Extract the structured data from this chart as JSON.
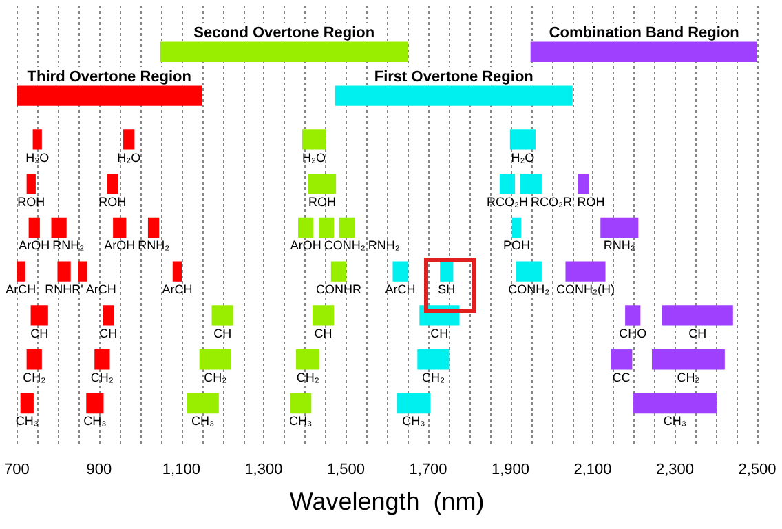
{
  "chart_data": {
    "type": "bar",
    "orientation": "horizontal",
    "xlabel": "Wavelength  (nm)",
    "categories": [
      null,
      null,
      null,
      null,
      null,
      null,
      null,
      null,
      null
    ],
    "xlim": [
      700,
      2500
    ],
    "xticks": [
      {
        "value": 700,
        "label": "700"
      },
      {
        "value": 750,
        "label": null
      },
      {
        "value": 800,
        "label": null
      },
      {
        "value": 850,
        "label": null
      },
      {
        "value": 900,
        "label": "900"
      },
      {
        "value": 950,
        "label": null
      },
      {
        "value": 1000,
        "label": null
      },
      {
        "value": 1050,
        "label": null
      },
      {
        "value": 1100,
        "label": "1,100"
      },
      {
        "value": 1150,
        "label": null
      },
      {
        "value": 1200,
        "label": null
      },
      {
        "value": 1250,
        "label": null
      },
      {
        "value": 1300,
        "label": "1,300"
      },
      {
        "value": 1350,
        "label": null
      },
      {
        "value": 1400,
        "label": null
      },
      {
        "value": 1450,
        "label": null
      },
      {
        "value": 1500,
        "label": "1,500"
      },
      {
        "value": 1550,
        "label": null
      },
      {
        "value": 1600,
        "label": null
      },
      {
        "value": 1650,
        "label": null
      },
      {
        "value": 1700,
        "label": "1,700"
      },
      {
        "value": 1750,
        "label": null
      },
      {
        "value": 1800,
        "label": null
      },
      {
        "value": 1850,
        "label": null
      },
      {
        "value": 1900,
        "label": "1,900"
      },
      {
        "value": 1950,
        "label": null
      },
      {
        "value": 2000,
        "label": null
      },
      {
        "value": 2050,
        "label": null
      },
      {
        "value": 2100,
        "label": "2,100"
      },
      {
        "value": 2150,
        "label": null
      },
      {
        "value": 2200,
        "label": null
      },
      {
        "value": 2250,
        "label": null
      },
      {
        "value": 2300,
        "label": "2,300"
      },
      {
        "value": 2350,
        "label": null
      },
      {
        "value": 2400,
        "label": null
      },
      {
        "value": 2450,
        "label": null
      },
      {
        "value": 2500,
        "label": "2,500"
      }
    ],
    "grid": "x",
    "series": [
      {
        "color": "#ff0000",
        "base": [
          null,
          700,
          740,
          725,
          730,
          700,
          735,
          725,
          710
        ],
        "values": [
          null,
          450,
          20,
          20,
          25,
          20,
          40,
          35,
          30
        ],
        "value_labels": [
          null,
          "Third Overtone Region",
          "H₂O",
          "ROH",
          "ArOH",
          "ArCH",
          "CH",
          "CH₂",
          "CH₃"
        ]
      },
      {
        "color": "#ff0000",
        "base": [
          null,
          null,
          960,
          920,
          785,
          800,
          910,
          890,
          870
        ],
        "values": [
          null,
          null,
          25,
          25,
          35,
          30,
          25,
          35,
          40
        ],
        "value_labels": [
          null,
          null,
          "H₂O",
          "ROH",
          "RNH₂",
          "RNHR'",
          "CH",
          "CH₂",
          "CH₃"
        ]
      },
      {
        "color": "#ff0000",
        "base": [
          null,
          null,
          null,
          null,
          935,
          850,
          null,
          null,
          null
        ],
        "values": [
          null,
          null,
          null,
          null,
          30,
          20,
          null,
          null,
          null
        ],
        "value_labels": [
          null,
          null,
          null,
          null,
          "ArOH",
          "ArCH",
          null,
          null,
          null
        ]
      },
      {
        "color": "#ff0000",
        "base": [
          null,
          null,
          null,
          null,
          1020,
          1080,
          null,
          null,
          null
        ],
        "values": [
          null,
          null,
          null,
          null,
          25,
          20,
          null,
          null,
          null
        ],
        "value_labels": [
          null,
          null,
          null,
          null,
          "RNH₂",
          "ArCH",
          null,
          null,
          null
        ]
      },
      {
        "color": "#99ee00",
        "base": [
          1050,
          null,
          1395,
          1410,
          1385,
          1465,
          1175,
          1145,
          1115
        ],
        "values": [
          600,
          null,
          55,
          65,
          35,
          35,
          50,
          75,
          75
        ],
        "value_labels": [
          "Second Overtone Region",
          null,
          "H₂O",
          "ROH",
          "ArOH",
          "CONHR",
          "CH",
          "CH₂",
          "CH₃"
        ]
      },
      {
        "color": "#99ee00",
        "base": [
          null,
          null,
          null,
          null,
          1435,
          null,
          1420,
          1380,
          1365
        ],
        "values": [
          null,
          null,
          null,
          null,
          35,
          null,
          50,
          55,
          50
        ],
        "value_labels": [
          null,
          null,
          null,
          null,
          "CONH₂",
          null,
          "CH",
          "CH₂",
          "CH₃"
        ]
      },
      {
        "color": "#99ee00",
        "base": [
          null,
          null,
          null,
          null,
          1485,
          null,
          null,
          null,
          null
        ],
        "values": [
          null,
          null,
          null,
          null,
          35,
          null,
          null,
          null,
          null
        ],
        "value_labels": [
          null,
          null,
          null,
          null,
          "RNH₂",
          null,
          null,
          null,
          null
        ]
      },
      {
        "color": "#00f0f0",
        "base": [
          null,
          1475,
          1900,
          1875,
          1905,
          1615,
          1680,
          1675,
          1625
        ],
        "values": [
          null,
          575,
          60,
          35,
          20,
          35,
          95,
          75,
          80
        ],
        "value_labels": [
          null,
          "First Overtone Region",
          "H₂O",
          "RCO₂H",
          "POH",
          "ArCH",
          "CH",
          "CH₂",
          "CH₃"
        ]
      },
      {
        "color": "#00f0f0",
        "base": [
          null,
          null,
          null,
          1925,
          null,
          1730,
          null,
          null,
          null
        ],
        "values": [
          null,
          null,
          null,
          50,
          null,
          30,
          null,
          null,
          null
        ],
        "value_labels": [
          null,
          null,
          null,
          "RCO₂R'",
          null,
          "SH",
          null,
          null,
          null
        ]
      },
      {
        "color": "#00f0f0",
        "base": [
          null,
          null,
          null,
          null,
          null,
          1915,
          null,
          null,
          null
        ],
        "values": [
          null,
          null,
          null,
          null,
          null,
          60,
          null,
          null,
          null
        ],
        "value_labels": [
          null,
          null,
          null,
          null,
          null,
          "CONH₂",
          null,
          null,
          null
        ]
      },
      {
        "color": "#a040ff",
        "base": [
          1950,
          null,
          null,
          2065,
          2120,
          2035,
          2180,
          2145,
          2200
        ],
        "values": [
          550,
          null,
          null,
          25,
          90,
          95,
          35,
          50,
          200
        ],
        "value_labels": [
          "Combination Band Region",
          null,
          null,
          "ROH",
          "RNH₂",
          "CONH₂(H)",
          "CHO",
          "CC",
          "CH₃"
        ]
      },
      {
        "color": "#a040ff",
        "base": [
          null,
          null,
          null,
          null,
          null,
          null,
          2270,
          2245,
          null
        ],
        "values": [
          null,
          null,
          null,
          null,
          null,
          null,
          170,
          175,
          null
        ],
        "value_labels": [
          null,
          null,
          null,
          null,
          null,
          null,
          "CH",
          "CH₂",
          null
        ]
      }
    ]
  }
}
